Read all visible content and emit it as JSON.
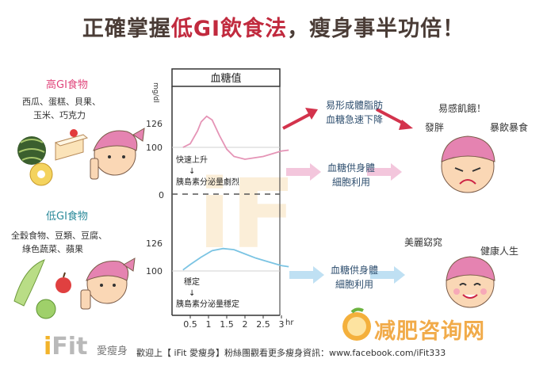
{
  "title": {
    "part1": "正確掌握",
    "highlight": "低GI飲食法",
    "part2": "，瘦身事半功倍！"
  },
  "high_gi": {
    "heading": "高GI食物",
    "foods_line1": "西瓜、蛋糕、貝果、",
    "foods_line2": "玉米、巧克力"
  },
  "low_gi": {
    "heading": "低GI食物",
    "foods_line1": "全穀食物、豆類、豆腐、",
    "foods_line2": "綠色蔬菜、蘋果"
  },
  "chart_data": {
    "type": "line",
    "title": "血糖值",
    "ylabel": "mg/dl",
    "xlabel": "hr",
    "x_ticks": [
      "0.5",
      "1",
      "1.5",
      "2",
      "2.5",
      "3"
    ],
    "y_ticks_top": [
      "126",
      "100",
      "0"
    ],
    "y_ticks_bottom": [
      "126",
      "100"
    ],
    "series": [
      {
        "x": [
          0.3,
          0.5,
          0.7,
          0.8,
          0.95,
          1.1,
          1.3,
          1.5,
          1.7,
          2.0,
          2.5,
          3.0,
          3.2
        ],
        "y": [
          100,
          104,
          118,
          128,
          134,
          130,
          113,
          98,
          90,
          87,
          90,
          96,
          97
        ],
        "color": "#e594b6"
      },
      {
        "x": [
          0.3,
          0.5,
          0.8,
          1.1,
          1.4,
          1.7,
          2.0,
          2.3,
          2.6,
          3.0,
          3.2
        ],
        "y": [
          101,
          106,
          113,
          119,
          121,
          120,
          116,
          112,
          109,
          105,
          104
        ],
        "color": "#7bc4e3"
      }
    ],
    "annotations_top": [
      "快速上升",
      "↓",
      "胰島素分泌量劇烈"
    ],
    "annotations_bottom": [
      "穩定",
      "↓",
      "胰島素分泌量穩定"
    ]
  },
  "watermark": "iFit",
  "high_result": {
    "line1": "易形成體脂肪",
    "line2": "血糖急速下降"
  },
  "high_mid": {
    "line1": "血糖供身體",
    "line2": "細胞利用"
  },
  "low_mid": {
    "line1": "血糖供身體",
    "line2": "細胞利用"
  },
  "high_face": {
    "a": "易感飢餓！",
    "b": "發胖",
    "c": "暴飲暴食"
  },
  "low_face": {
    "a": "美麗窈窕",
    "b": "健康人生"
  },
  "footer": {
    "logo_i": "i",
    "logo_rest": "Fit",
    "brand": "愛瘦身",
    "text": "歡迎上【 iFit 愛瘦身】粉絲團觀看更多瘦身資訊：www.facebook.com/iFit333"
  },
  "site_watermark": "减肥咨询网",
  "colors": {
    "pink_arrow": "#e6a2c4",
    "red_arrow": "#d3334c",
    "blue_arrow": "#a7d3ee",
    "hair": "#e583b1",
    "skin": "#fad7b5"
  }
}
